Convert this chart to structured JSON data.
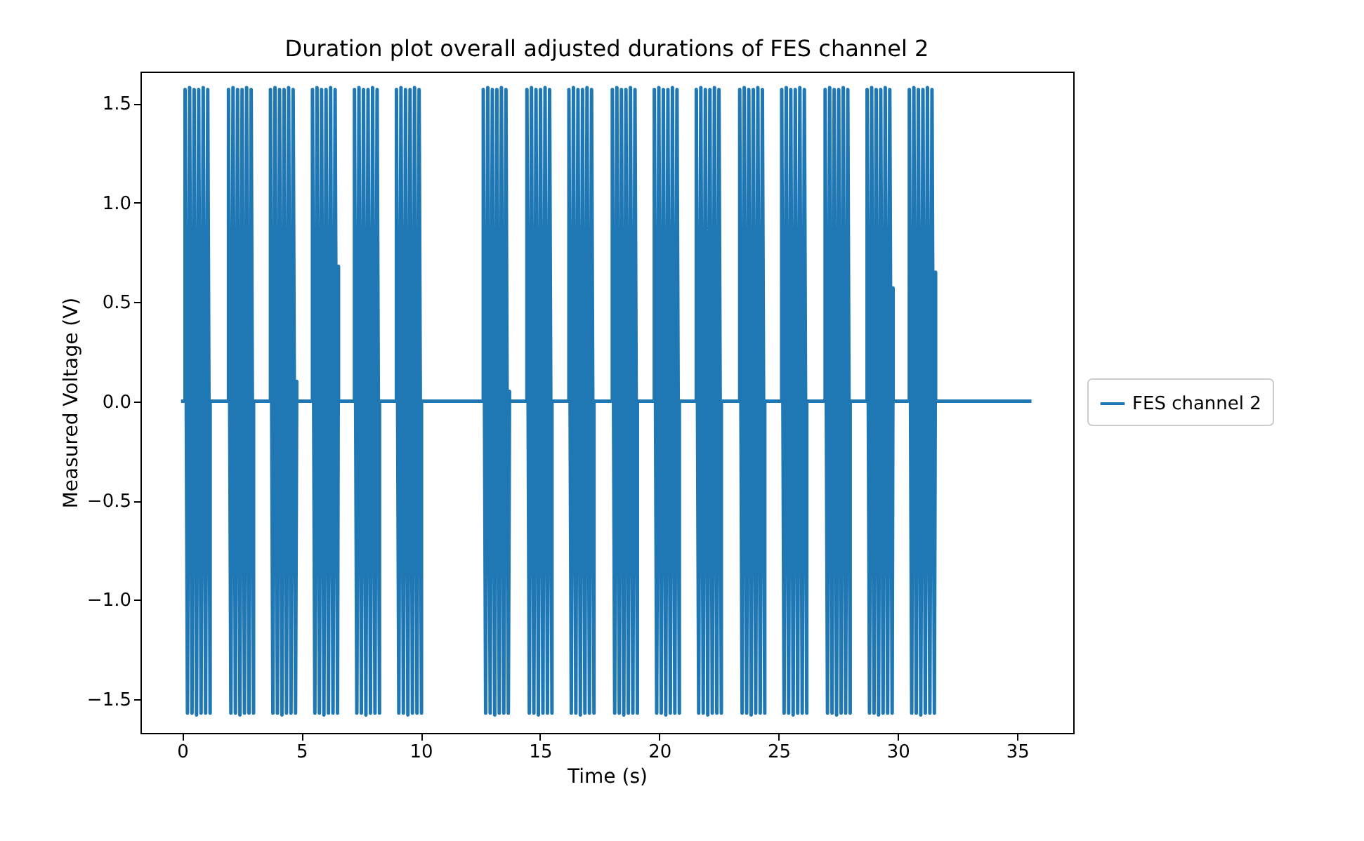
{
  "chart_data": {
    "type": "line",
    "title": "Duration plot overall adjusted durations of FES channel 2",
    "xlabel": "Time (s)",
    "ylabel": "Measured Voltage (V)",
    "xlim": [
      -1.75,
      37.35
    ],
    "ylim": [
      -1.67,
      1.66
    ],
    "xticks": [
      0,
      5,
      10,
      15,
      20,
      25,
      30,
      35
    ],
    "yticks": [
      {
        "value": -1.5,
        "label": "−1.5"
      },
      {
        "value": -1.0,
        "label": "−1.0"
      },
      {
        "value": -0.5,
        "label": "−0.5"
      },
      {
        "value": 0,
        "label": "0.0"
      },
      {
        "value": 0.5,
        "label": "0.5"
      },
      {
        "value": 1.0,
        "label": "1.0"
      },
      {
        "value": 1.5,
        "label": "1.5"
      }
    ],
    "grid": false,
    "legend": "right",
    "line_style": "solid",
    "marker": "none",
    "series": [
      {
        "name": "FES channel 2",
        "color": "#1f77b4",
        "x": [
          -0.05,
          0.12,
          0.12,
          0.22,
          0.31,
          0.41,
          0.5,
          0.6,
          0.69,
          0.79,
          0.88,
          0.98,
          1.07,
          1.17,
          1.17,
          1.94,
          1.94,
          2.04,
          2.13,
          2.23,
          2.32,
          2.42,
          2.51,
          2.61,
          2.7,
          2.8,
          2.89,
          2.99,
          2.99,
          3.7,
          3.7,
          3.8,
          3.89,
          3.99,
          4.08,
          4.18,
          4.27,
          4.37,
          4.46,
          4.56,
          4.65,
          4.75,
          4.8,
          4.8,
          5.46,
          5.46,
          5.56,
          5.65,
          5.75,
          5.84,
          5.94,
          6.03,
          6.13,
          6.22,
          6.32,
          6.41,
          6.51,
          6.55,
          6.55,
          7.22,
          7.22,
          7.32,
          7.41,
          7.51,
          7.6,
          7.7,
          7.79,
          7.89,
          7.98,
          8.08,
          8.17,
          8.27,
          8.27,
          8.98,
          8.98,
          9.08,
          9.17,
          9.27,
          9.36,
          9.46,
          9.55,
          9.65,
          9.74,
          9.84,
          9.93,
          10.03,
          10.03,
          12.62,
          12.62,
          12.72,
          12.81,
          12.91,
          13.0,
          13.1,
          13.19,
          13.29,
          13.38,
          13.48,
          13.57,
          13.67,
          13.72,
          13.72,
          14.45,
          14.45,
          14.55,
          14.64,
          14.74,
          14.83,
          14.93,
          15.02,
          15.12,
          15.21,
          15.31,
          15.4,
          15.5,
          15.5,
          16.21,
          16.21,
          16.31,
          16.4,
          16.5,
          16.59,
          16.69,
          16.78,
          16.88,
          16.97,
          17.07,
          17.16,
          17.26,
          17.26,
          18.03,
          18.03,
          18.13,
          18.22,
          18.32,
          18.41,
          18.51,
          18.6,
          18.7,
          18.79,
          18.89,
          18.98,
          19.08,
          19.08,
          19.79,
          19.79,
          19.89,
          19.98,
          20.08,
          20.17,
          20.27,
          20.36,
          20.46,
          20.55,
          20.65,
          20.74,
          20.84,
          20.84,
          21.55,
          21.55,
          21.65,
          21.74,
          21.84,
          21.93,
          22.03,
          22.12,
          22.22,
          22.31,
          22.41,
          22.5,
          22.6,
          22.6,
          23.37,
          23.37,
          23.47,
          23.56,
          23.66,
          23.75,
          23.85,
          23.94,
          24.04,
          24.13,
          24.23,
          24.32,
          24.42,
          24.42,
          25.13,
          25.13,
          25.23,
          25.32,
          25.42,
          25.51,
          25.61,
          25.7,
          25.8,
          25.89,
          25.99,
          26.08,
          26.18,
          26.18,
          26.95,
          26.95,
          27.05,
          27.14,
          27.24,
          27.33,
          27.43,
          27.52,
          27.62,
          27.71,
          27.81,
          27.9,
          28.0,
          28.0,
          28.71,
          28.71,
          28.81,
          28.9,
          29.0,
          29.09,
          29.19,
          29.28,
          29.38,
          29.47,
          29.57,
          29.66,
          29.76,
          29.8,
          29.8,
          30.48,
          30.48,
          30.58,
          30.67,
          30.77,
          30.86,
          30.96,
          31.05,
          31.15,
          31.24,
          31.34,
          31.43,
          31.53,
          31.58,
          31.58,
          35.6
        ],
        "values": [
          0,
          0,
          1.57,
          -1.57,
          1.58,
          -1.57,
          1.57,
          -1.58,
          1.57,
          -1.57,
          1.58,
          -1.57,
          1.57,
          -1.57,
          0,
          0,
          1.57,
          -1.57,
          1.58,
          -1.57,
          1.57,
          -1.58,
          1.57,
          -1.57,
          1.58,
          -1.57,
          1.57,
          -1.57,
          0,
          0,
          1.57,
          -1.57,
          1.58,
          -1.57,
          1.57,
          -1.58,
          1.57,
          -1.57,
          1.58,
          -1.57,
          1.57,
          -1.57,
          0.1,
          0,
          0,
          1.57,
          -1.57,
          1.58,
          -1.57,
          1.57,
          -1.58,
          1.57,
          -1.57,
          1.58,
          -1.57,
          1.57,
          -1.57,
          0.68,
          0,
          0,
          1.57,
          -1.57,
          1.58,
          -1.57,
          1.57,
          -1.58,
          1.57,
          -1.57,
          1.58,
          -1.57,
          1.57,
          -1.57,
          0,
          0,
          1.57,
          -1.57,
          1.58,
          -1.57,
          1.57,
          -1.58,
          1.57,
          -1.57,
          1.58,
          -1.57,
          1.57,
          -1.57,
          0,
          0,
          1.57,
          -1.57,
          1.58,
          -1.57,
          1.57,
          -1.58,
          1.57,
          -1.57,
          1.58,
          -1.57,
          1.57,
          -1.57,
          0.05,
          0,
          0,
          1.57,
          -1.57,
          1.58,
          -1.57,
          1.57,
          -1.58,
          1.57,
          -1.57,
          1.58,
          -1.57,
          1.57,
          -1.57,
          0,
          0,
          1.57,
          -1.57,
          1.58,
          -1.57,
          1.57,
          -1.58,
          1.57,
          -1.57,
          1.58,
          -1.57,
          1.57,
          -1.57,
          0,
          0,
          1.57,
          -1.57,
          1.58,
          -1.57,
          1.57,
          -1.58,
          1.57,
          -1.57,
          1.58,
          -1.57,
          1.57,
          -1.57,
          0,
          0,
          1.57,
          -1.57,
          1.58,
          -1.57,
          1.57,
          -1.58,
          1.57,
          -1.57,
          1.58,
          -1.57,
          1.57,
          -1.57,
          0,
          0,
          1.57,
          -1.57,
          1.58,
          -1.57,
          1.57,
          -1.58,
          1.57,
          -1.57,
          1.58,
          -1.57,
          1.57,
          -1.57,
          0,
          0,
          1.57,
          -1.57,
          1.58,
          -1.57,
          1.57,
          -1.58,
          1.57,
          -1.57,
          1.58,
          -1.57,
          1.57,
          -1.57,
          0,
          0,
          1.57,
          -1.57,
          1.58,
          -1.57,
          1.57,
          -1.58,
          1.57,
          -1.57,
          1.58,
          -1.57,
          1.57,
          -1.57,
          0,
          0,
          1.57,
          -1.57,
          1.58,
          -1.57,
          1.57,
          -1.58,
          1.57,
          -1.57,
          1.58,
          -1.57,
          1.57,
          -1.57,
          0,
          0,
          1.57,
          -1.57,
          1.58,
          -1.57,
          1.57,
          -1.58,
          1.57,
          -1.57,
          1.58,
          -1.57,
          1.57,
          -1.57,
          0.57,
          0,
          0,
          1.57,
          -1.57,
          1.58,
          -1.57,
          1.57,
          -1.58,
          1.57,
          -1.57,
          1.58,
          -1.57,
          1.57,
          -1.57,
          0.65,
          0,
          0
        ]
      }
    ]
  }
}
